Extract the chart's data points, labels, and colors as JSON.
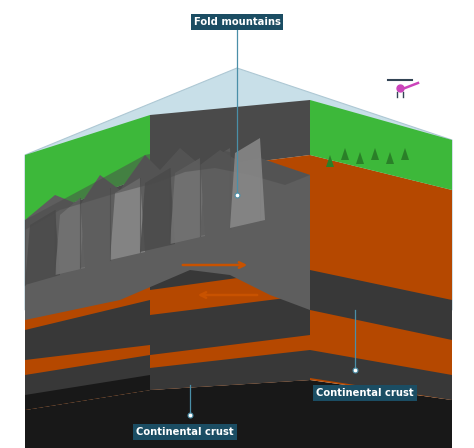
{
  "fig_width": 4.74,
  "fig_height": 4.48,
  "dpi": 100,
  "bg_color": "#ffffff",
  "sky_color": "#c8dfe8",
  "label_bg_color": "#1b4d63",
  "label_text_color": "#ffffff",
  "grass_green": "#3db83a",
  "rock_dark1": "#4a4a4a",
  "rock_dark2": "#5e5e5e",
  "rock_mid": "#747474",
  "rock_light": "#8a8a8a",
  "rock_vlight": "#a0a0a0",
  "earth_orange": "#b54800",
  "earth_orange2": "#c85200",
  "earth_dark": "#4a2000",
  "earth_darkgray": "#383838",
  "earth_black": "#181818",
  "labels": [
    "Fold mountains",
    "Continental crust",
    "Continental crust"
  ]
}
